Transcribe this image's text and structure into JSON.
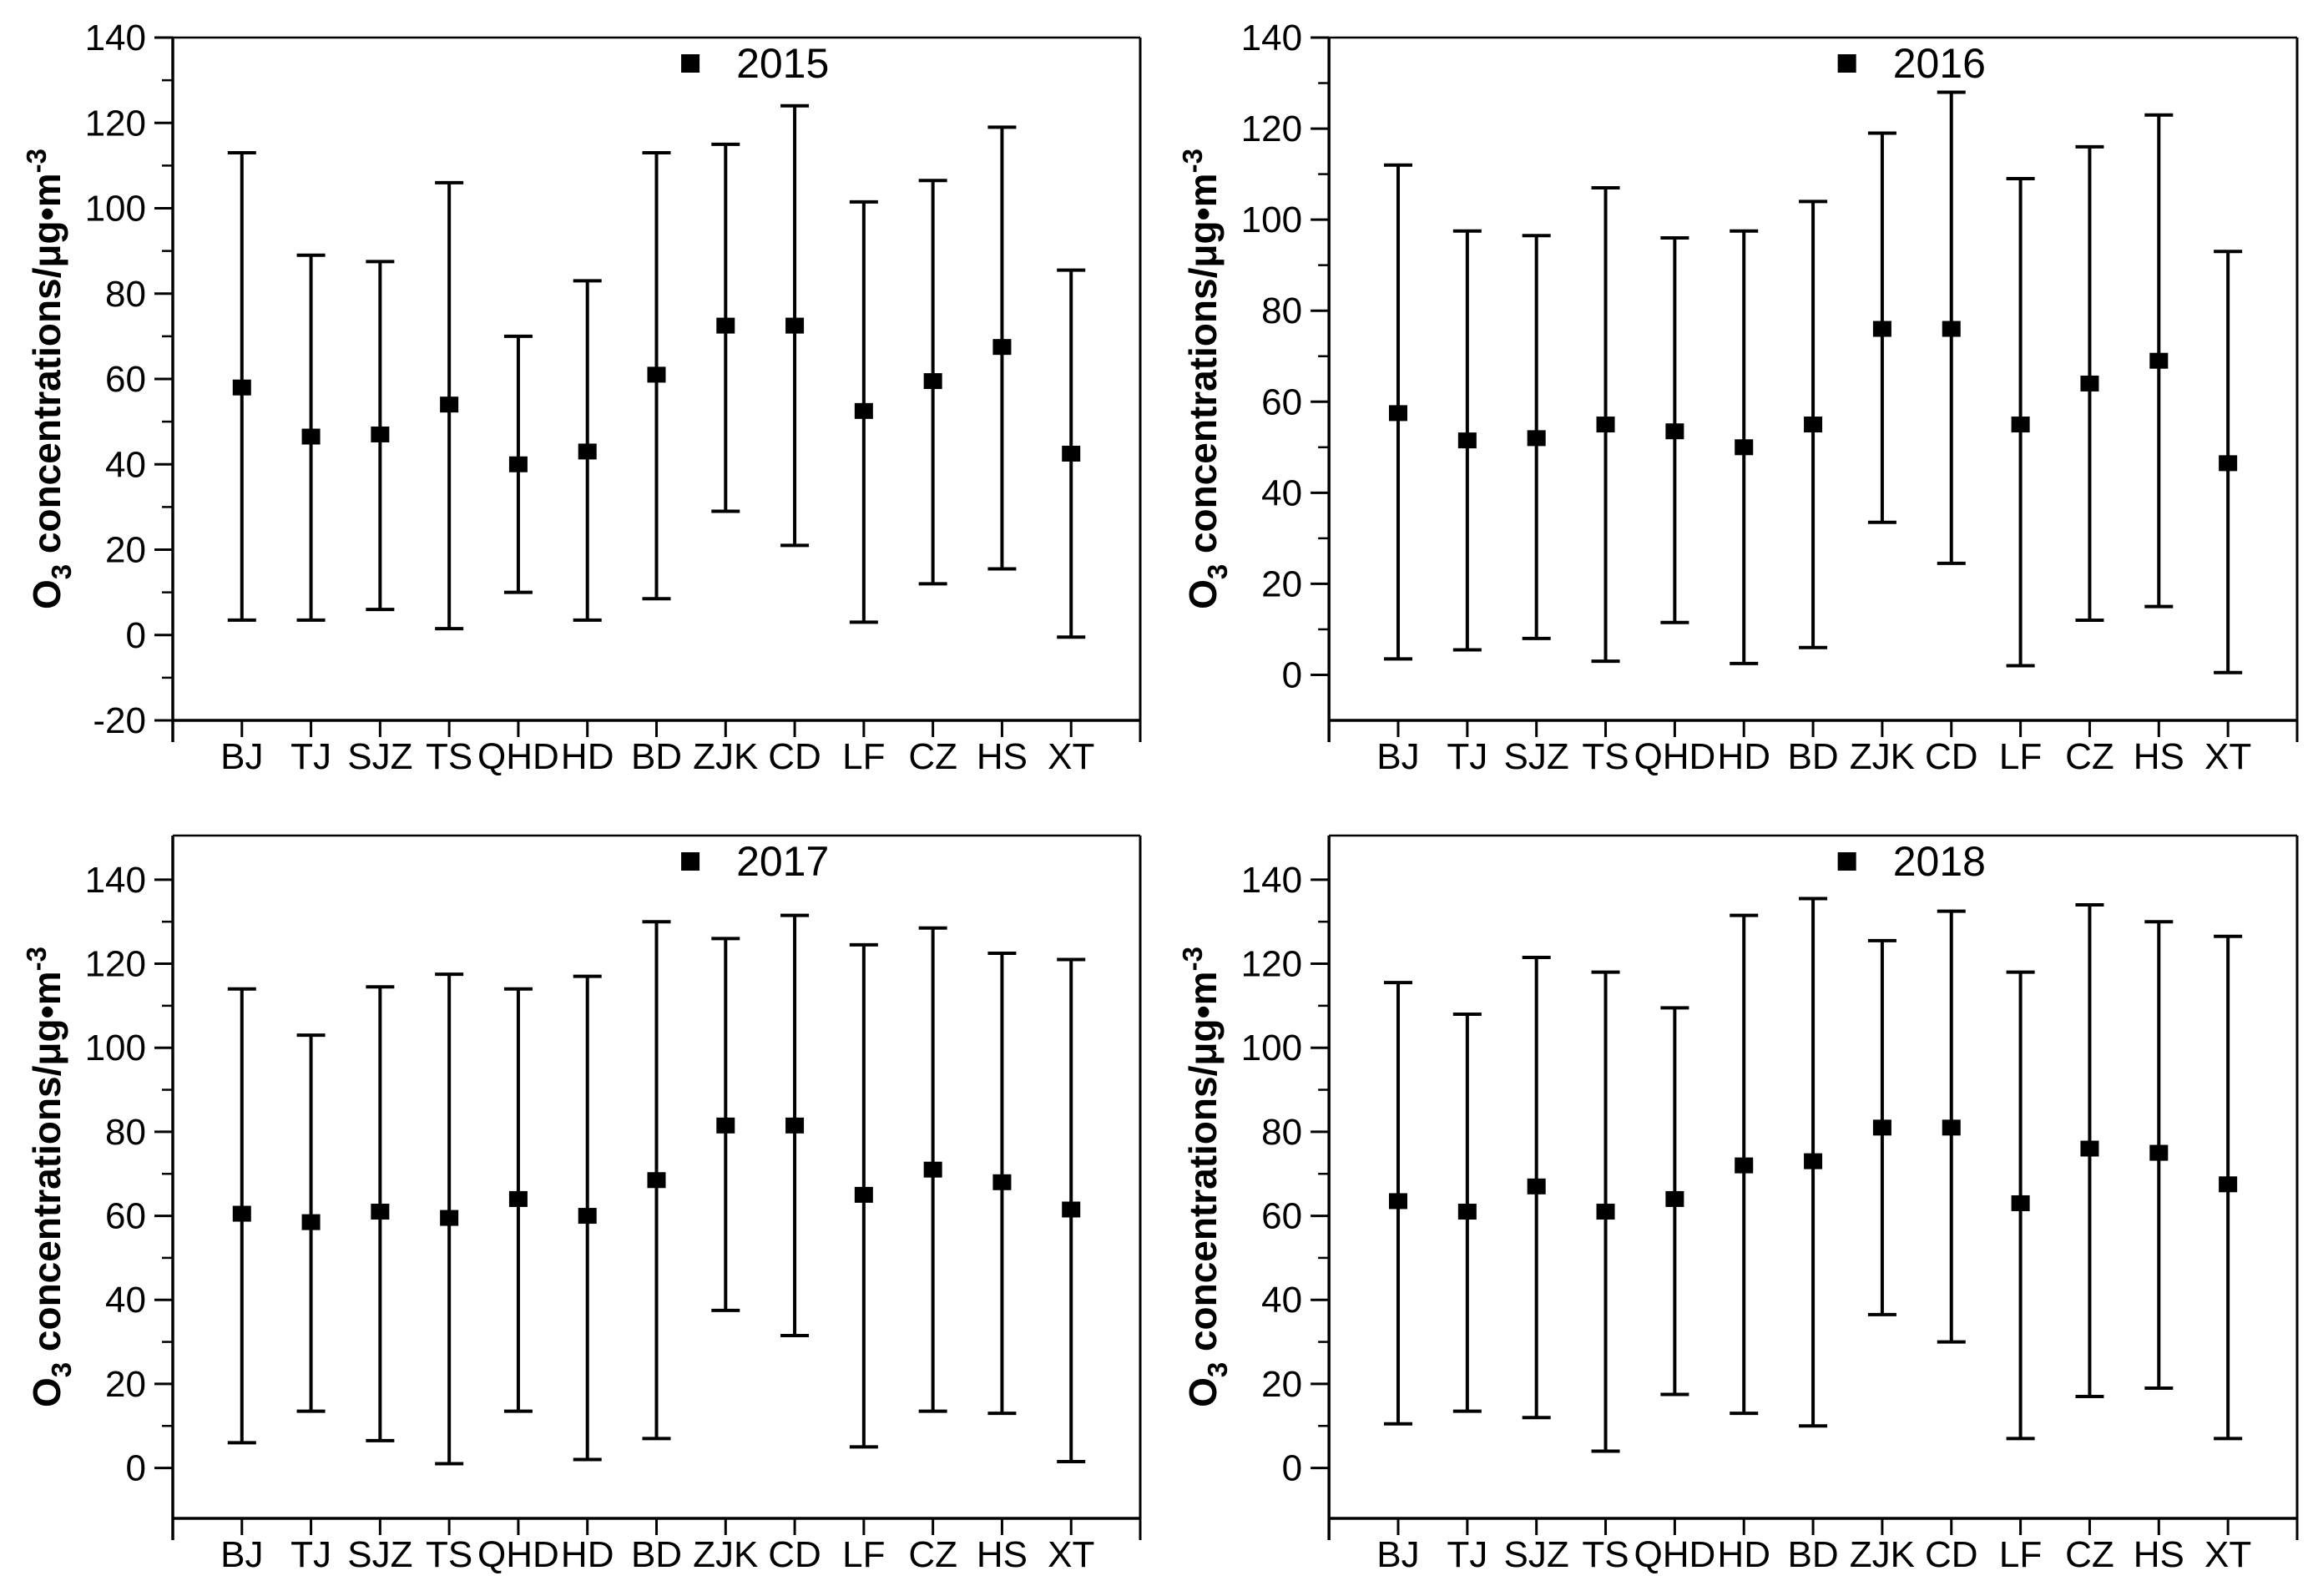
{
  "figure": {
    "background": "#ffffff",
    "axis_color": "#000000",
    "marker_color": "#000000",
    "ylabel_parts": [
      {
        "text": "O"
      },
      {
        "text": "3",
        "script": "sub"
      },
      {
        "text": " concentrations/μg•m"
      },
      {
        "text": "-3",
        "script": "sup"
      }
    ]
  },
  "chart_data": [
    {
      "type": "scatter",
      "legend": "2015",
      "legend_position": "top-center",
      "marker": "black-square",
      "error_bars": true,
      "grid": false,
      "categories": [
        "BJ",
        "TJ",
        "SJZ",
        "TS",
        "QHD",
        "HD",
        "BD",
        "ZJK",
        "CD",
        "LF",
        "CZ",
        "HS",
        "XT"
      ],
      "series": [
        {
          "name": "2015",
          "mean": [
            58,
            46.5,
            47,
            54,
            40,
            43,
            61,
            72.5,
            72.5,
            52.5,
            59.5,
            67.5,
            42.5
          ],
          "lower": [
            3.5,
            3.5,
            6,
            1.5,
            10,
            3.5,
            8.5,
            29,
            21,
            3,
            12,
            15.5,
            -0.5
          ],
          "upper": [
            113,
            89,
            87.5,
            106,
            70,
            83,
            113,
            115,
            124,
            101.5,
            106.5,
            119,
            85.5
          ]
        }
      ],
      "ylabel": "O3 concentrations/μg•m-3",
      "ylim": [
        -20,
        140
      ],
      "yticks": [
        -20,
        0,
        20,
        40,
        60,
        80,
        100,
        120,
        140
      ],
      "minor_tick_step": 10
    },
    {
      "type": "scatter",
      "legend": "2016",
      "legend_position": "top-center",
      "marker": "black-square",
      "error_bars": true,
      "grid": false,
      "categories": [
        "BJ",
        "TJ",
        "SJZ",
        "TS",
        "QHD",
        "HD",
        "BD",
        "ZJK",
        "CD",
        "LF",
        "CZ",
        "HS",
        "XT"
      ],
      "series": [
        {
          "name": "2016",
          "mean": [
            57.5,
            51.5,
            52,
            55,
            53.5,
            50,
            55,
            76,
            76,
            55,
            64,
            69,
            46.5
          ],
          "lower": [
            3.5,
            5.5,
            8,
            3,
            11.5,
            2.5,
            6,
            33.5,
            24.5,
            2,
            12,
            15,
            0.5
          ],
          "upper": [
            112,
            97.5,
            96.5,
            107,
            96,
            97.5,
            104,
            119,
            128,
            109,
            116,
            123,
            93
          ]
        }
      ],
      "ylabel": "O3 concentrations/μg•m-3",
      "ylim": [
        -10,
        140
      ],
      "yticks": [
        0,
        20,
        40,
        60,
        80,
        100,
        120,
        140
      ],
      "minor_tick_step": 10
    },
    {
      "type": "scatter",
      "legend": "2017",
      "legend_position": "top-center",
      "marker": "black-square",
      "error_bars": true,
      "grid": false,
      "categories": [
        "BJ",
        "TJ",
        "SJZ",
        "TS",
        "QHD",
        "HD",
        "BD",
        "ZJK",
        "CD",
        "LF",
        "CZ",
        "HS",
        "XT"
      ],
      "series": [
        {
          "name": "2017",
          "mean": [
            60.5,
            58.5,
            61,
            59.5,
            64,
            60,
            68.5,
            81.5,
            81.5,
            65,
            71,
            68,
            61.5
          ],
          "lower": [
            6,
            13.5,
            6.5,
            1,
            13.5,
            2,
            7,
            37.5,
            31.5,
            5,
            13.5,
            13,
            1.5
          ],
          "upper": [
            114,
            103,
            114.5,
            117.5,
            114,
            117,
            130,
            126,
            131.5,
            124.5,
            128.5,
            122.5,
            121
          ]
        }
      ],
      "ylabel": "O3 concentrations/μg•m-3",
      "ylim": [
        -12,
        150.5
      ],
      "yticks": [
        0,
        20,
        40,
        60,
        80,
        100,
        120,
        140
      ],
      "minor_tick_step": 10
    },
    {
      "type": "scatter",
      "legend": "2018",
      "legend_position": "top-center",
      "marker": "black-square",
      "error_bars": true,
      "grid": false,
      "categories": [
        "BJ",
        "TJ",
        "SJZ",
        "TS",
        "QHD",
        "HD",
        "BD",
        "ZJK",
        "CD",
        "LF",
        "CZ",
        "HS",
        "XT"
      ],
      "series": [
        {
          "name": "2018",
          "mean": [
            63.5,
            61,
            67,
            61,
            64,
            72,
            73,
            81,
            81,
            63,
            76,
            75,
            67.5
          ],
          "lower": [
            10.5,
            13.5,
            12,
            4,
            17.5,
            13,
            10,
            36.5,
            30,
            7,
            17,
            19,
            7
          ],
          "upper": [
            115.5,
            108,
            121.5,
            118,
            109.5,
            131.5,
            135.5,
            125.5,
            132.5,
            118,
            134,
            130,
            126.5
          ]
        }
      ],
      "ylabel": "O3 concentrations/μg•m-3",
      "ylim": [
        -12,
        150.5
      ],
      "yticks": [
        0,
        20,
        40,
        60,
        80,
        100,
        120,
        140
      ],
      "minor_tick_step": 10
    }
  ]
}
